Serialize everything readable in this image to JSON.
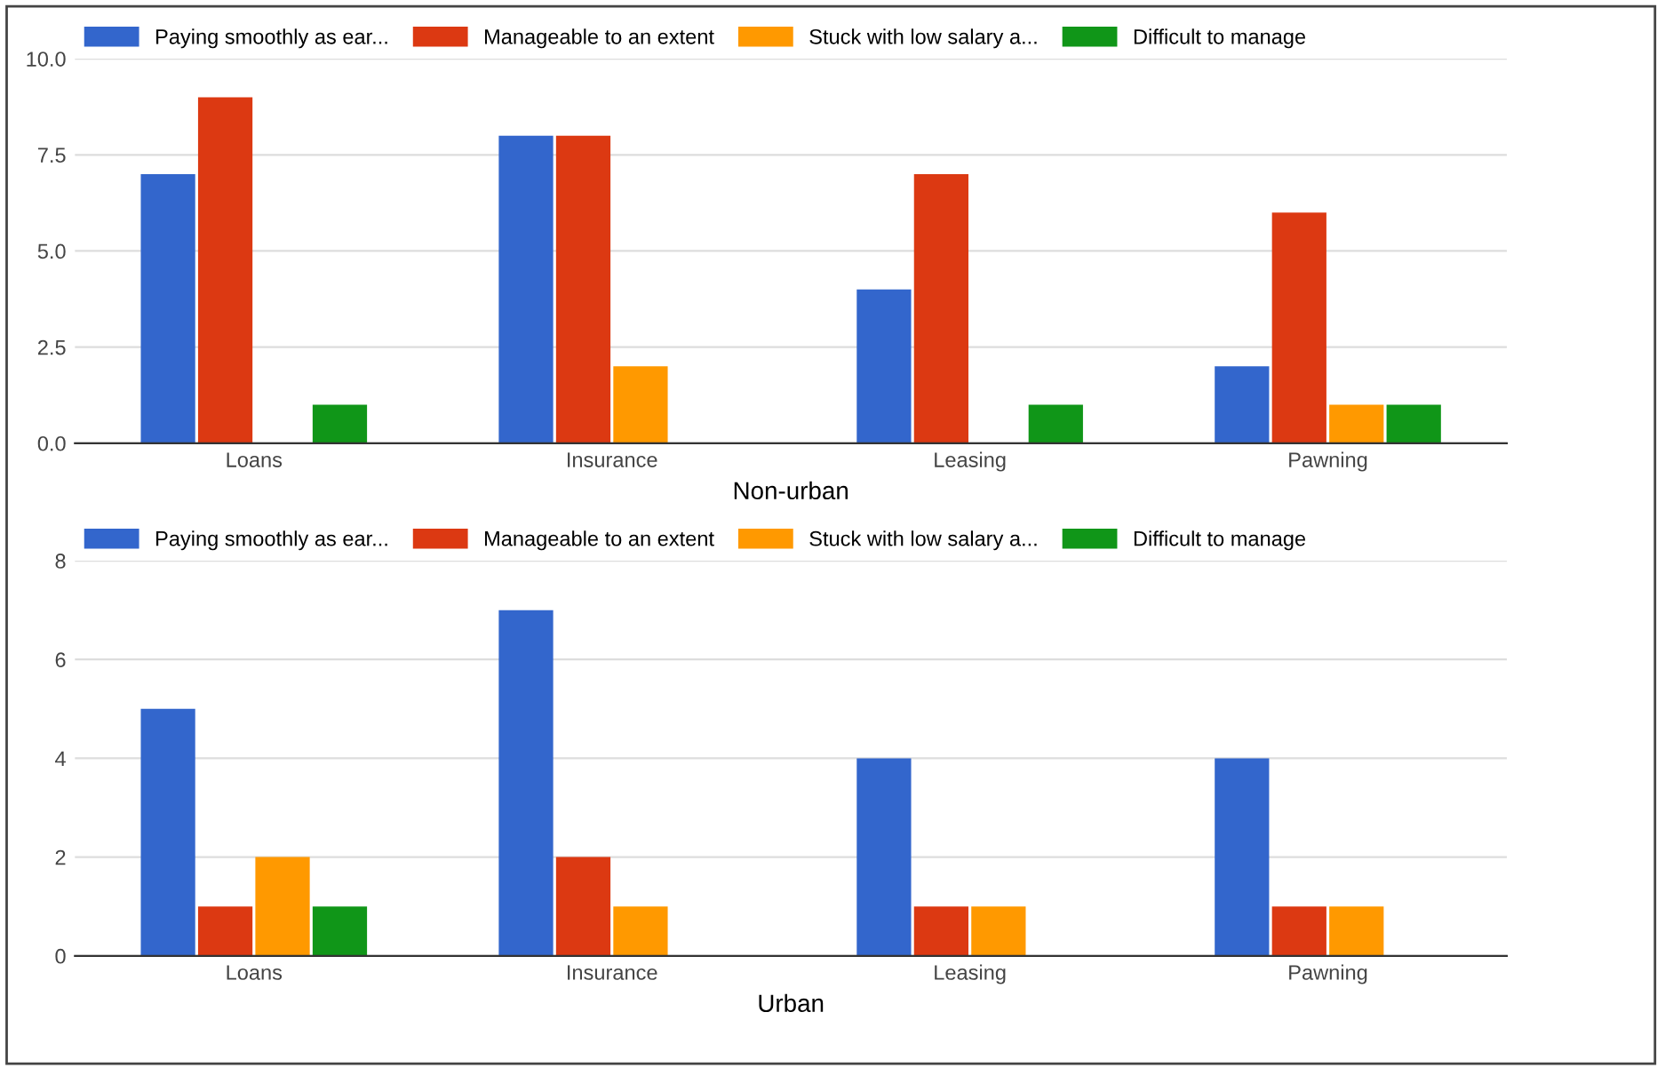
{
  "chart_data": [
    {
      "type": "bar",
      "xlabel": "Non-urban",
      "categories": [
        "Loans",
        "Insurance",
        "Leasing",
        "Pawning"
      ],
      "series": [
        {
          "name": "Paying smoothly as ear...",
          "color": "#3366cc",
          "values": [
            7,
            8,
            4,
            2
          ]
        },
        {
          "name": "Manageable to an extent",
          "color": "#dc3912",
          "values": [
            9,
            8,
            7,
            6
          ]
        },
        {
          "name": "Stuck with low salary a...",
          "color": "#ff9900",
          "values": [
            0,
            2,
            0,
            1
          ]
        },
        {
          "name": "Difficult to manage",
          "color": "#109618",
          "values": [
            1,
            0,
            1,
            1
          ]
        }
      ],
      "ylim": [
        0,
        10
      ],
      "yticks": [
        {
          "value": 0,
          "label": "0.0"
        },
        {
          "value": 2.5,
          "label": "2.5"
        },
        {
          "value": 5,
          "label": "5.0"
        },
        {
          "value": 7.5,
          "label": "7.5"
        },
        {
          "value": 10,
          "label": "10.0"
        }
      ],
      "grid": "y",
      "legend": "top"
    },
    {
      "type": "bar",
      "xlabel": "Urban",
      "categories": [
        "Loans",
        "Insurance",
        "Leasing",
        "Pawning"
      ],
      "series": [
        {
          "name": "Paying smoothly as ear...",
          "color": "#3366cc",
          "values": [
            5,
            7,
            4,
            4
          ]
        },
        {
          "name": "Manageable to an extent",
          "color": "#dc3912",
          "values": [
            1,
            2,
            1,
            1
          ]
        },
        {
          "name": "Stuck with low salary a...",
          "color": "#ff9900",
          "values": [
            2,
            1,
            1,
            1
          ]
        },
        {
          "name": "Difficult to manage",
          "color": "#109618",
          "values": [
            1,
            0,
            0,
            0
          ]
        }
      ],
      "ylim": [
        0,
        8
      ],
      "yticks": [
        0,
        2,
        4,
        6,
        8
      ],
      "grid": "y",
      "legend": "top"
    }
  ]
}
